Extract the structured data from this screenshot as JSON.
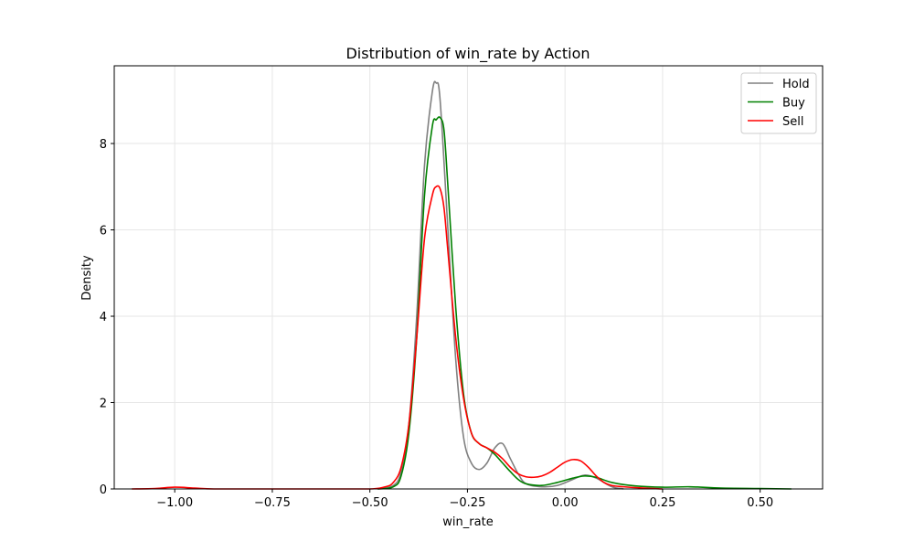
{
  "chart_data": {
    "type": "line",
    "title": "Distribution of win_rate by Action",
    "xlabel": "win_rate",
    "ylabel": "Density",
    "xlim": [
      -1.155,
      0.66
    ],
    "ylim": [
      0,
      9.8
    ],
    "xticks": [
      -1.0,
      -0.75,
      -0.5,
      -0.25,
      0.0,
      0.25,
      0.5
    ],
    "xtick_labels": [
      "−1.00",
      "−0.75",
      "−0.50",
      "−0.25",
      "0.00",
      "0.25",
      "0.50"
    ],
    "yticks": [
      0,
      2,
      4,
      6,
      8
    ],
    "ytick_labels": [
      "0",
      "2",
      "4",
      "6",
      "8"
    ],
    "grid": true,
    "legend_position": "top-right",
    "series": [
      {
        "name": "Hold",
        "color": "#808080",
        "x": [
          -0.48,
          -0.44,
          -0.42,
          -0.4,
          -0.38,
          -0.36,
          -0.34,
          -0.33,
          -0.32,
          -0.3,
          -0.28,
          -0.26,
          -0.24,
          -0.22,
          -0.2,
          -0.18,
          -0.16,
          -0.14,
          -0.12,
          -0.1,
          -0.06,
          -0.02,
          0.02,
          0.05,
          0.08,
          0.12,
          0.15
        ],
        "y": [
          0.0,
          0.08,
          0.4,
          1.5,
          4.0,
          7.5,
          9.2,
          9.4,
          9.0,
          6.0,
          3.0,
          1.2,
          0.6,
          0.45,
          0.6,
          0.95,
          1.05,
          0.7,
          0.35,
          0.12,
          0.05,
          0.08,
          0.22,
          0.32,
          0.25,
          0.05,
          0.0
        ]
      },
      {
        "name": "Buy",
        "color": "#008000",
        "x": [
          -0.48,
          -0.44,
          -0.42,
          -0.4,
          -0.38,
          -0.36,
          -0.34,
          -0.33,
          -0.32,
          -0.31,
          -0.3,
          -0.28,
          -0.26,
          -0.24,
          -0.22,
          -0.2,
          -0.18,
          -0.16,
          -0.14,
          -0.12,
          -0.1,
          -0.06,
          -0.02,
          0.02,
          0.05,
          0.08,
          0.12,
          0.18,
          0.25,
          0.32,
          0.4,
          0.5,
          0.58
        ],
        "y": [
          0.0,
          0.05,
          0.3,
          1.3,
          3.5,
          6.8,
          8.4,
          8.55,
          8.6,
          8.3,
          7.0,
          4.2,
          2.2,
          1.3,
          1.05,
          0.95,
          0.8,
          0.6,
          0.4,
          0.22,
          0.12,
          0.08,
          0.15,
          0.25,
          0.3,
          0.27,
          0.15,
          0.07,
          0.04,
          0.05,
          0.02,
          0.01,
          0.0
        ]
      },
      {
        "name": "Sell",
        "color": "#ff0000",
        "x": [
          -1.11,
          -1.05,
          -1.0,
          -0.95,
          -0.9,
          -0.8,
          -0.6,
          -0.5,
          -0.46,
          -0.44,
          -0.42,
          -0.4,
          -0.38,
          -0.36,
          -0.34,
          -0.33,
          -0.32,
          -0.31,
          -0.3,
          -0.28,
          -0.26,
          -0.24,
          -0.22,
          -0.2,
          -0.18,
          -0.16,
          -0.14,
          -0.12,
          -0.1,
          -0.08,
          -0.06,
          -0.04,
          -0.02,
          0.0,
          0.02,
          0.04,
          0.06,
          0.08,
          0.1,
          0.12,
          0.15,
          0.2,
          0.25
        ],
        "y": [
          0.0,
          0.01,
          0.04,
          0.02,
          0.0,
          0.0,
          0.0,
          0.0,
          0.05,
          0.15,
          0.5,
          1.5,
          3.5,
          5.8,
          6.8,
          7.0,
          6.95,
          6.5,
          5.5,
          3.5,
          2.1,
          1.3,
          1.05,
          0.95,
          0.85,
          0.7,
          0.5,
          0.35,
          0.28,
          0.27,
          0.3,
          0.38,
          0.5,
          0.62,
          0.68,
          0.65,
          0.5,
          0.3,
          0.15,
          0.08,
          0.05,
          0.02,
          0.0
        ]
      }
    ]
  }
}
